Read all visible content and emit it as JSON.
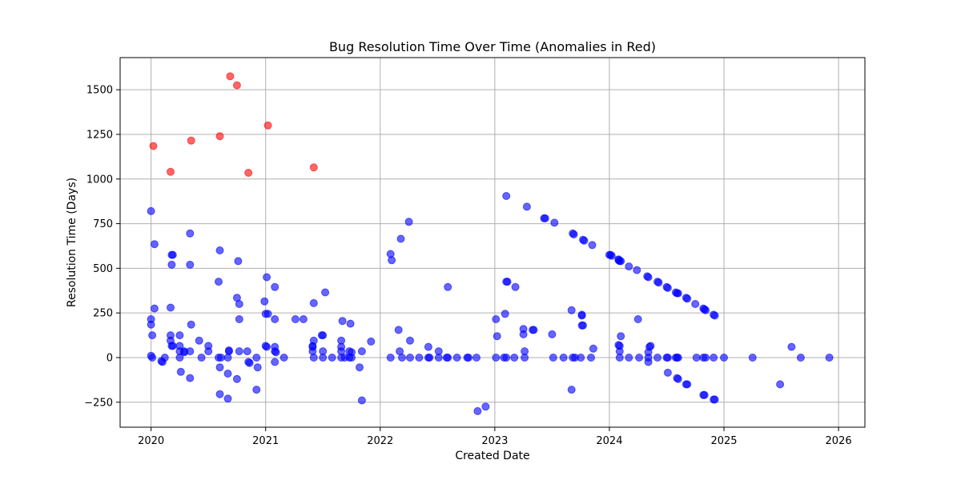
{
  "chart_data": {
    "type": "scatter",
    "title": "Bug Resolution Time Over Time (Anomalies in Red)",
    "xlabel": "Created Date",
    "ylabel": "Resolution Time (Days)",
    "xlim": [
      2019.73,
      2026.23
    ],
    "ylim": [
      -390,
      1680
    ],
    "xticks": [
      2020,
      2021,
      2022,
      2023,
      2024,
      2025,
      2026
    ],
    "yticks": [
      -250,
      0,
      250,
      500,
      750,
      1000,
      1250,
      1500
    ],
    "grid": true,
    "colors": {
      "normal": "#0000ff",
      "anomaly": "#ff0000"
    },
    "series": [
      {
        "role": "normal",
        "points": [
          [
            2020.0,
            820
          ],
          [
            2020.0,
            215
          ],
          [
            2020.0,
            185
          ],
          [
            2020.01,
            125
          ],
          [
            2020.0,
            10
          ],
          [
            2020.01,
            0
          ],
          [
            2020.03,
            635
          ],
          [
            2020.03,
            275
          ],
          [
            2020.09,
            -20
          ],
          [
            2020.1,
            -25
          ],
          [
            2020.12,
            0
          ],
          [
            2020.17,
            280
          ],
          [
            2020.18,
            520
          ],
          [
            2020.18,
            575
          ],
          [
            2020.19,
            575
          ],
          [
            2020.17,
            125
          ],
          [
            2020.17,
            95
          ],
          [
            2020.18,
            65
          ],
          [
            2020.19,
            65
          ],
          [
            2020.25,
            125
          ],
          [
            2020.25,
            65
          ],
          [
            2020.25,
            35
          ],
          [
            2020.25,
            0
          ],
          [
            2020.26,
            -80
          ],
          [
            2020.29,
            35
          ],
          [
            2020.29,
            30
          ],
          [
            2020.34,
            695
          ],
          [
            2020.34,
            520
          ],
          [
            2020.35,
            185
          ],
          [
            2020.34,
            35
          ],
          [
            2020.34,
            -115
          ],
          [
            2020.42,
            95
          ],
          [
            2020.44,
            0
          ],
          [
            2020.5,
            65
          ],
          [
            2020.5,
            35
          ],
          [
            2020.6,
            600
          ],
          [
            2020.59,
            425
          ],
          [
            2020.59,
            0
          ],
          [
            2020.6,
            -55
          ],
          [
            2020.6,
            -205
          ],
          [
            2020.61,
            0
          ],
          [
            2020.68,
            35
          ],
          [
            2020.68,
            40
          ],
          [
            2020.67,
            0
          ],
          [
            2020.67,
            -90
          ],
          [
            2020.67,
            -230
          ],
          [
            2020.76,
            540
          ],
          [
            2020.75,
            335
          ],
          [
            2020.77,
            300
          ],
          [
            2020.77,
            215
          ],
          [
            2020.77,
            35
          ],
          [
            2020.75,
            -120
          ],
          [
            2020.84,
            35
          ],
          [
            2020.85,
            -25
          ],
          [
            2020.86,
            -30
          ],
          [
            2020.92,
            0
          ],
          [
            2020.93,
            -55
          ],
          [
            2020.92,
            -180
          ],
          [
            2020.99,
            315
          ],
          [
            2021.01,
            450
          ],
          [
            2021.0,
            245
          ],
          [
            2021.02,
            245
          ],
          [
            2021.0,
            65
          ],
          [
            2021.01,
            60
          ],
          [
            2021.08,
            395
          ],
          [
            2021.08,
            215
          ],
          [
            2021.08,
            60
          ],
          [
            2021.08,
            35
          ],
          [
            2021.09,
            30
          ],
          [
            2021.08,
            -25
          ],
          [
            2021.16,
            0
          ],
          [
            2021.26,
            215
          ],
          [
            2021.33,
            215
          ],
          [
            2021.42,
            305
          ],
          [
            2021.42,
            95
          ],
          [
            2021.41,
            60
          ],
          [
            2021.41,
            65
          ],
          [
            2021.41,
            35
          ],
          [
            2021.42,
            0
          ],
          [
            2021.5,
            125
          ],
          [
            2021.49,
            125
          ],
          [
            2021.52,
            365
          ],
          [
            2021.5,
            35
          ],
          [
            2021.5,
            0
          ],
          [
            2021.58,
            0
          ],
          [
            2021.66,
            95
          ],
          [
            2021.66,
            60
          ],
          [
            2021.66,
            35
          ],
          [
            2021.66,
            0
          ],
          [
            2021.67,
            205
          ],
          [
            2021.69,
            0
          ],
          [
            2021.73,
            35
          ],
          [
            2021.73,
            0
          ],
          [
            2021.74,
            190
          ],
          [
            2021.75,
            0
          ],
          [
            2021.75,
            30
          ],
          [
            2021.82,
            -55
          ],
          [
            2021.84,
            35
          ],
          [
            2021.84,
            -240
          ],
          [
            2021.92,
            90
          ],
          [
            2022.09,
            580
          ],
          [
            2022.1,
            545
          ],
          [
            2022.09,
            0
          ],
          [
            2022.16,
            155
          ],
          [
            2022.18,
            665
          ],
          [
            2022.17,
            35
          ],
          [
            2022.19,
            0
          ],
          [
            2022.25,
            760
          ],
          [
            2022.26,
            95
          ],
          [
            2022.26,
            0
          ],
          [
            2022.34,
            0
          ],
          [
            2022.42,
            60
          ],
          [
            2022.42,
            0
          ],
          [
            2022.43,
            0
          ],
          [
            2022.51,
            35
          ],
          [
            2022.51,
            0
          ],
          [
            2022.59,
            395
          ],
          [
            2022.58,
            0
          ],
          [
            2022.59,
            0
          ],
          [
            2022.67,
            0
          ],
          [
            2022.76,
            0
          ],
          [
            2022.77,
            0
          ],
          [
            2022.84,
            0
          ],
          [
            2022.85,
            -300
          ],
          [
            2022.92,
            -275
          ],
          [
            2023.01,
            215
          ],
          [
            2023.02,
            120
          ],
          [
            2023.01,
            0
          ],
          [
            2023.08,
            0
          ],
          [
            2023.1,
            905
          ],
          [
            2023.09,
            245
          ],
          [
            2023.1,
            425
          ],
          [
            2023.11,
            425
          ],
          [
            2023.1,
            0
          ],
          [
            2023.17,
            0
          ],
          [
            2023.18,
            395
          ],
          [
            2023.25,
            160
          ],
          [
            2023.25,
            130
          ],
          [
            2023.26,
            35
          ],
          [
            2023.26,
            0
          ],
          [
            2023.28,
            845
          ],
          [
            2023.33,
            155
          ],
          [
            2023.34,
            155
          ],
          [
            2023.44,
            780
          ],
          [
            2023.43,
            780
          ],
          [
            2023.5,
            130
          ],
          [
            2023.51,
            0
          ],
          [
            2023.52,
            755
          ],
          [
            2023.6,
            0
          ],
          [
            2023.67,
            265
          ],
          [
            2023.67,
            -180
          ],
          [
            2023.68,
            0
          ],
          [
            2023.68,
            695
          ],
          [
            2023.69,
            690
          ],
          [
            2023.7,
            0
          ],
          [
            2023.75,
            0
          ],
          [
            2023.76,
            240
          ],
          [
            2023.76,
            235
          ],
          [
            2023.76,
            180
          ],
          [
            2023.77,
            180
          ],
          [
            2023.77,
            660
          ],
          [
            2023.78,
            655
          ],
          [
            2023.84,
            0
          ],
          [
            2023.85,
            630
          ],
          [
            2023.86,
            50
          ],
          [
            2024.0,
            575
          ],
          [
            2024.01,
            575
          ],
          [
            2024.02,
            570
          ],
          [
            2024.08,
            550
          ],
          [
            2024.08,
            545
          ],
          [
            2024.09,
            540
          ],
          [
            2024.1,
            540
          ],
          [
            2024.08,
            70
          ],
          [
            2024.09,
            65
          ],
          [
            2024.1,
            120
          ],
          [
            2024.09,
            35
          ],
          [
            2024.09,
            0
          ],
          [
            2024.17,
            510
          ],
          [
            2024.17,
            0
          ],
          [
            2024.24,
            490
          ],
          [
            2024.25,
            215
          ],
          [
            2024.26,
            0
          ],
          [
            2024.33,
            455
          ],
          [
            2024.34,
            450
          ],
          [
            2024.35,
            60
          ],
          [
            2024.36,
            65
          ],
          [
            2024.34,
            30
          ],
          [
            2024.34,
            0
          ],
          [
            2024.34,
            -25
          ],
          [
            2024.42,
            425
          ],
          [
            2024.43,
            420
          ],
          [
            2024.42,
            0
          ],
          [
            2024.5,
            395
          ],
          [
            2024.51,
            390
          ],
          [
            2024.5,
            0
          ],
          [
            2024.51,
            0
          ],
          [
            2024.51,
            -85
          ],
          [
            2024.58,
            365
          ],
          [
            2024.59,
            360
          ],
          [
            2024.6,
            360
          ],
          [
            2024.58,
            0
          ],
          [
            2024.59,
            0
          ],
          [
            2024.6,
            0
          ],
          [
            2024.59,
            -115
          ],
          [
            2024.6,
            -120
          ],
          [
            2024.67,
            335
          ],
          [
            2024.68,
            330
          ],
          [
            2024.67,
            -150
          ],
          [
            2024.68,
            -150
          ],
          [
            2024.75,
            300
          ],
          [
            2024.76,
            0
          ],
          [
            2024.82,
            275
          ],
          [
            2024.83,
            270
          ],
          [
            2024.84,
            265
          ],
          [
            2024.82,
            0
          ],
          [
            2024.84,
            0
          ],
          [
            2024.82,
            -210
          ],
          [
            2024.83,
            -210
          ],
          [
            2024.91,
            240
          ],
          [
            2024.92,
            235
          ],
          [
            2024.91,
            0
          ],
          [
            2024.91,
            -235
          ],
          [
            2024.92,
            -235
          ],
          [
            2025.0,
            0
          ],
          [
            2025.25,
            0
          ],
          [
            2025.49,
            -150
          ],
          [
            2025.59,
            60
          ],
          [
            2025.67,
            0
          ],
          [
            2025.92,
            0
          ]
        ]
      },
      {
        "role": "anomaly",
        "points": [
          [
            2020.02,
            1185
          ],
          [
            2020.17,
            1040
          ],
          [
            2020.35,
            1215
          ],
          [
            2020.6,
            1240
          ],
          [
            2020.69,
            1575
          ],
          [
            2020.75,
            1525
          ],
          [
            2020.85,
            1035
          ],
          [
            2021.02,
            1300
          ],
          [
            2021.42,
            1065
          ]
        ]
      }
    ]
  }
}
